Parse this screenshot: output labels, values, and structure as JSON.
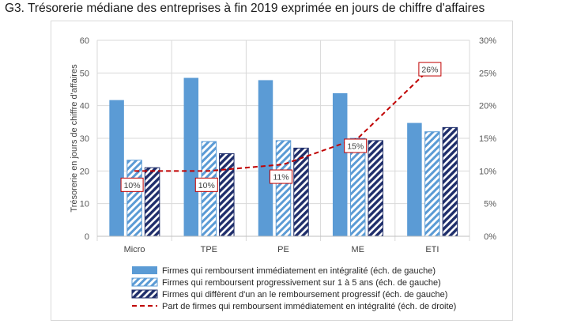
{
  "title": "G3. Trésorerie médiane des entreprises à fin 2019 exprimée en jours de chiffre d'affaires",
  "chart_data": {
    "type": "bar",
    "categories": [
      "Micro",
      "TPE",
      "PE",
      "ME",
      "ETI"
    ],
    "ylabel": "Trésorerie en jours de chiffre d'affaires",
    "ylim": [
      0,
      60
    ],
    "yticks": [
      "0",
      "10",
      "20",
      "30",
      "40",
      "50",
      "60"
    ],
    "y2lim": [
      0,
      30
    ],
    "y2ticks": [
      "0%",
      "5%",
      "10%",
      "15%",
      "20%",
      "25%",
      "30%"
    ],
    "series": [
      {
        "name": "Firmes qui remboursent immédiatement en intégralité (éch. de gauche)",
        "axis": "left",
        "style": "solid",
        "color": "#5b9bd5",
        "values": [
          41.7,
          48.5,
          47.8,
          43.8,
          34.7
        ]
      },
      {
        "name": "Firmes qui remboursent progressivement sur 1 à 5 ans (éch. de gauche)",
        "axis": "left",
        "style": "light-hatch",
        "color": "#5b9bd5",
        "values": [
          23.3,
          29.0,
          29.3,
          30.0,
          32.0
        ]
      },
      {
        "name": "Firmes qui diffèrent d'un an le remboursement progressif (éch. de gauche)",
        "axis": "left",
        "style": "dark-hatch",
        "color": "#1f2e6b",
        "values": [
          21.0,
          25.3,
          27.0,
          29.3,
          33.3
        ]
      },
      {
        "name": "Part de firmes qui remboursent immédiatement en intégralité (éch. de droite)",
        "axis": "right",
        "style": "dashed-line",
        "color": "#c00000",
        "values": [
          10,
          10,
          11,
          15,
          26
        ],
        "labels": [
          "10%",
          "10%",
          "11%",
          "15%",
          "26%"
        ]
      }
    ],
    "legend_position": "bottom"
  }
}
